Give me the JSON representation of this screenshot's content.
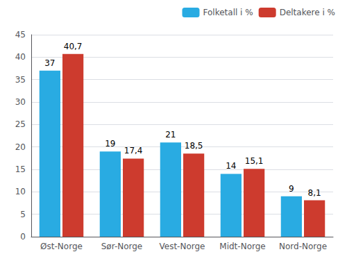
{
  "chart_data": {
    "type": "bar",
    "categories": [
      "Øst-Norge",
      "Sør-Norge",
      "Vest-Norge",
      "Midt-Norge",
      "Nord-Norge"
    ],
    "series": [
      {
        "name": "Folketall i %",
        "color": "#29ABE2",
        "values": [
          37,
          19,
          21,
          14,
          9
        ]
      },
      {
        "name": "Deltakere i %",
        "color": "#CD3B2E",
        "values": [
          40.7,
          17.4,
          18.5,
          15.1,
          8.1
        ],
        "value_labels": [
          "40,7",
          "17,4",
          "18,5",
          "15,1",
          "8,1"
        ]
      }
    ],
    "ylim": [
      0,
      45
    ],
    "yticks": [
      0,
      5,
      10,
      15,
      20,
      25,
      30,
      35,
      40,
      45
    ],
    "grid": true,
    "legend": "upper right",
    "data_labels": true
  }
}
